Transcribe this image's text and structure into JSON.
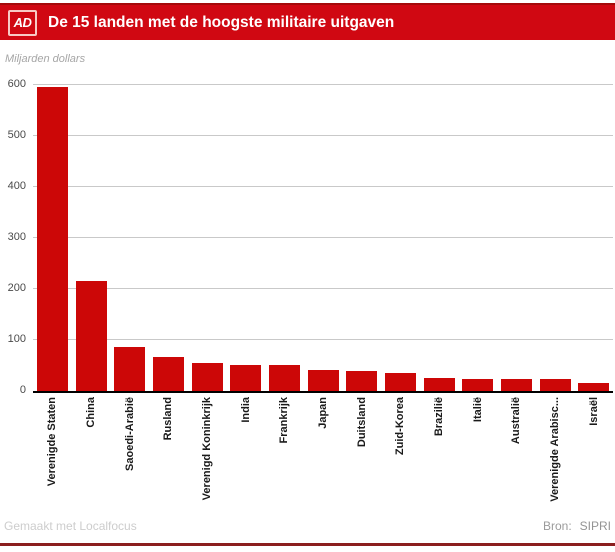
{
  "header": {
    "logo_text": "AD",
    "title": "De 15 landen met de hoogste militaire uitgaven"
  },
  "subtitle": "Miljarden dollars",
  "chart_data": {
    "type": "bar",
    "title": "De 15 landen met de hoogste militaire uitgaven",
    "ylabel": "Miljarden dollars",
    "xlabel": "",
    "categories": [
      "Verenigde Staten",
      "China",
      "Saoedi-Arabië",
      "Rusland",
      "Verenigd Koninkrijk",
      "India",
      "Frankrijk",
      "Japan",
      "Duitsland",
      "Zuid-Korea",
      "Brazilië",
      "Italië",
      "Australië",
      "Verenigde Arabisc...",
      "Israël"
    ],
    "values": [
      596,
      215,
      87,
      66,
      55,
      51,
      50,
      41,
      39,
      36,
      25,
      24,
      24,
      23,
      16
    ],
    "yticks": [
      0,
      100,
      200,
      300,
      400,
      500,
      600
    ],
    "ylim": [
      0,
      600
    ],
    "grid": true,
    "legend": false,
    "bar_color": "#cc0707"
  },
  "footer": {
    "credit": "Gemaakt met Localfocus",
    "source_label": "Bron:",
    "source_value": "SIPRI"
  },
  "colors": {
    "header_red": "#d00812",
    "bar_red": "#cc0707",
    "bottom_bar_red": "#8b1e1e"
  }
}
